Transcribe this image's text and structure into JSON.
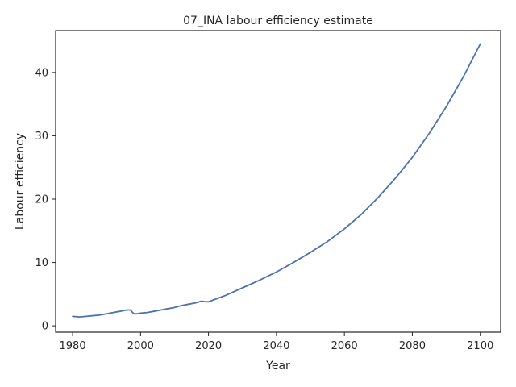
{
  "chart_data": {
    "type": "line",
    "title": "07_INA labour efficiency estimate",
    "xlabel": "Year",
    "ylabel": "Labour efficiency",
    "xlim": [
      1975,
      2106
    ],
    "ylim": [
      -1.0,
      46.6
    ],
    "xticks": [
      1980,
      2000,
      2020,
      2040,
      2060,
      2080,
      2100
    ],
    "yticks": [
      0,
      10,
      20,
      30,
      40
    ],
    "grid": false,
    "line_color": "#4c72b0",
    "series": [
      {
        "x": [
          1980,
          1982,
          1984,
          1986,
          1988,
          1990,
          1992,
          1994,
          1995,
          1996,
          1997,
          1998,
          1999,
          2000,
          2002,
          2004,
          2006,
          2008,
          2010,
          2012,
          2014,
          2016,
          2018,
          2019,
          2020,
          2022,
          2025,
          2030,
          2035,
          2040,
          2045,
          2050,
          2055,
          2060,
          2065,
          2070,
          2075,
          2080,
          2085,
          2090,
          2095,
          2100
        ],
        "y": [
          1.5,
          1.4,
          1.5,
          1.6,
          1.7,
          1.9,
          2.1,
          2.3,
          2.4,
          2.5,
          2.5,
          1.9,
          1.9,
          2.0,
          2.1,
          2.3,
          2.5,
          2.7,
          2.9,
          3.2,
          3.4,
          3.6,
          3.9,
          3.8,
          3.8,
          4.2,
          4.8,
          6.0,
          7.2,
          8.5,
          10.0,
          11.6,
          13.3,
          15.3,
          17.6,
          20.3,
          23.3,
          26.6,
          30.4,
          34.6,
          39.3,
          44.5
        ]
      }
    ]
  }
}
